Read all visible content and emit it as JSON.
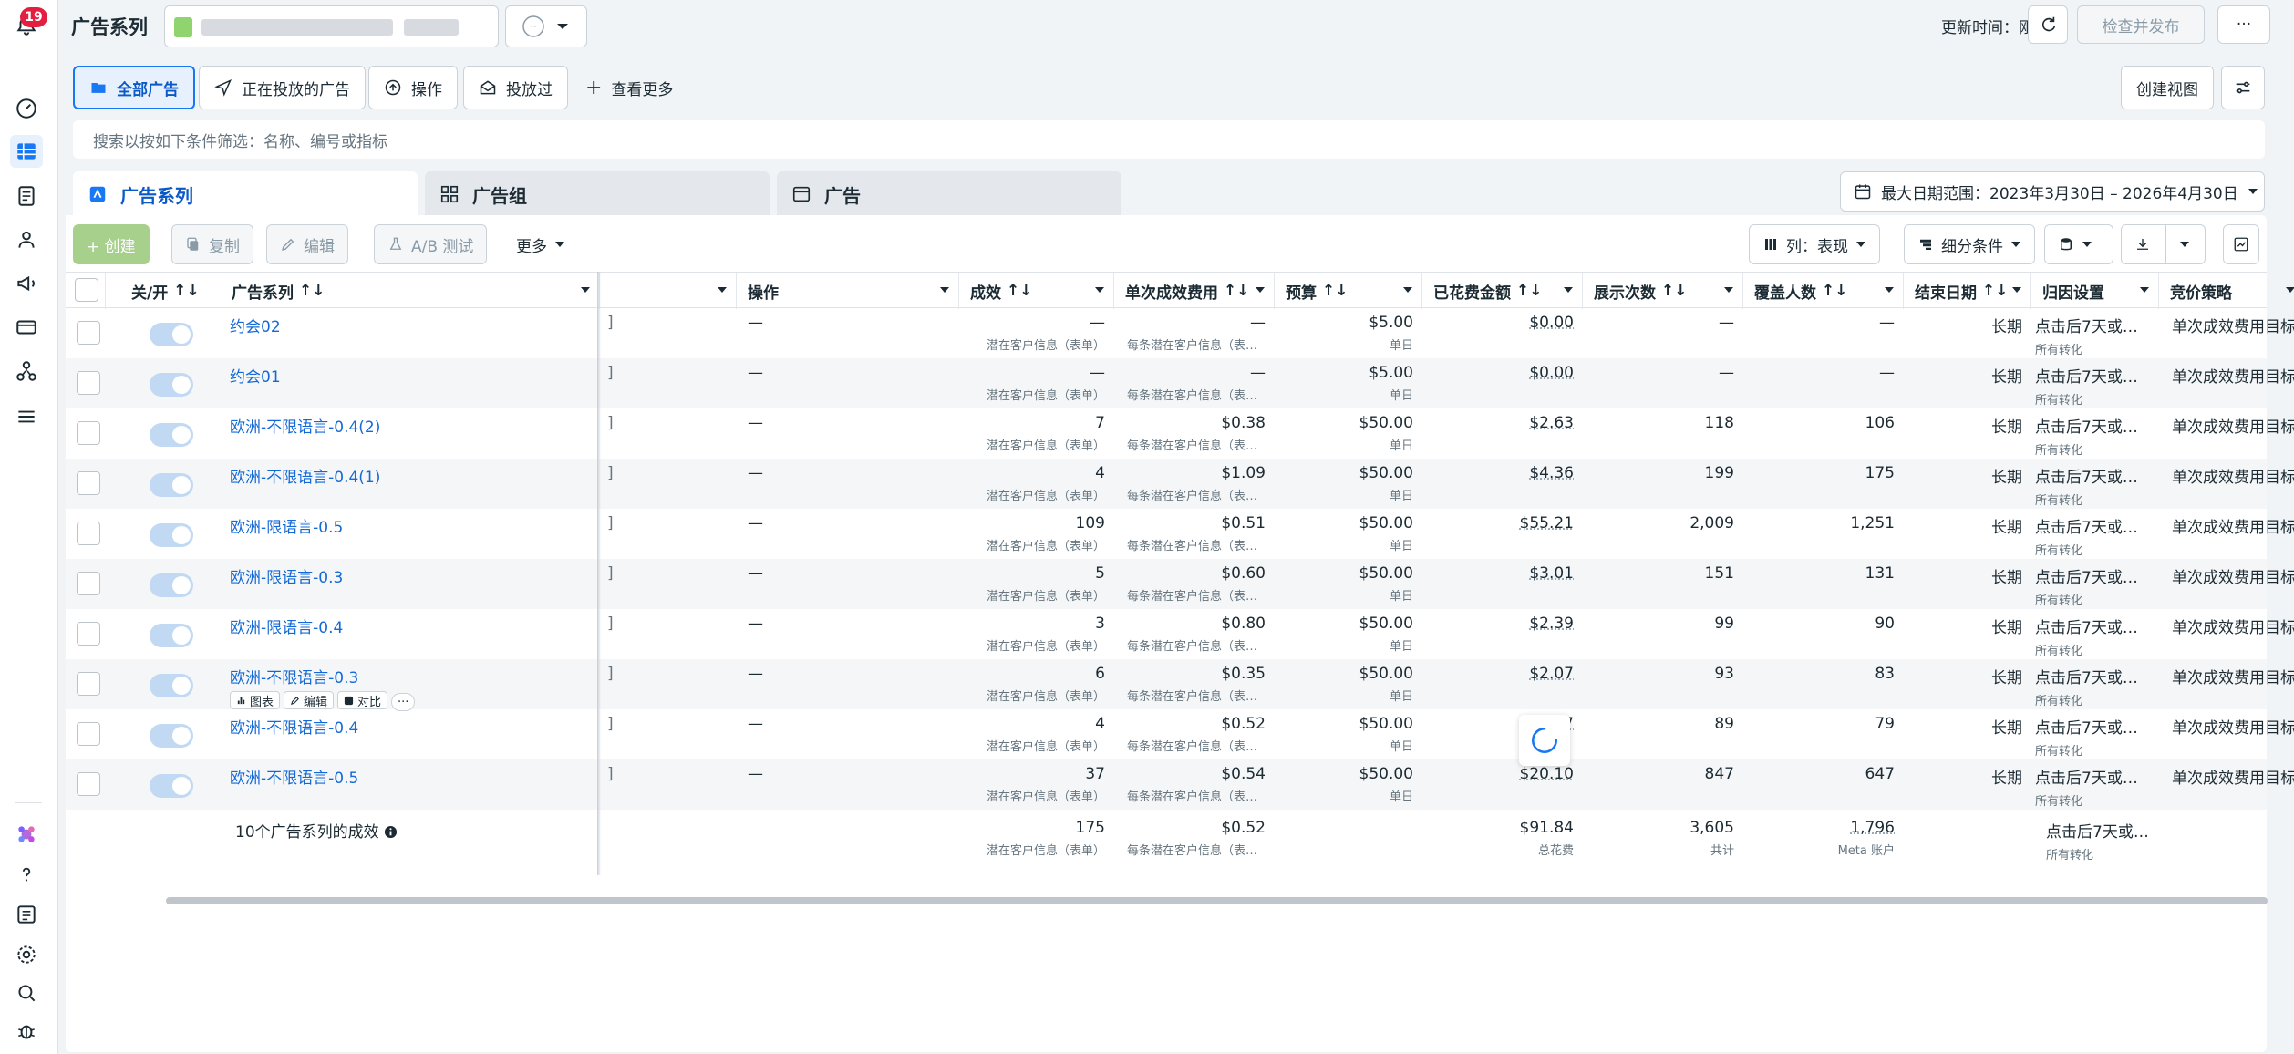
{
  "header": {
    "title": "广告系列",
    "notification_count": "19",
    "updated_time": "更新时间：刚刚",
    "review_publish": "检查并发布",
    "more": "···"
  },
  "quick_filters": [
    {
      "label": "全部广告"
    },
    {
      "label": "正在投放的广告"
    },
    {
      "label": "操作"
    },
    {
      "label": "投放过"
    },
    {
      "label": "查看更多"
    }
  ],
  "create_view": "创建视图",
  "search": {
    "placeholder": "搜索以按如下条件筛选：名称、编号或指标"
  },
  "level_tabs": [
    {
      "label": "广告系列"
    },
    {
      "label": "广告组"
    },
    {
      "label": "广告"
    }
  ],
  "date_range": "最大日期范围：2023年3月30日 – 2026年4月30日",
  "toolbar": {
    "create": "+ 创建",
    "duplicate": "复制",
    "edit": "编辑",
    "ab_test": "A/B 测试",
    "more": "更多",
    "columns": "列：表现",
    "breakdown": "细分条件"
  },
  "columns": {
    "on_off": "关/开",
    "campaign": "广告系列",
    "actions": "操作",
    "results": "成效",
    "cost_per_result": "单次成效费用",
    "budget": "预算",
    "amount_spent": "已花费金额",
    "impressions": "展示次数",
    "reach": "覆盖人数",
    "end_date": "结束日期",
    "attribution": "归因设置",
    "bid_strategy": "竞价策略"
  },
  "rows": [
    {
      "name": "约会02",
      "action": "—",
      "results": "—",
      "results_sub": "潜在客户信息（表单）",
      "cpr": "—",
      "cpr_sub": "每条潜在客户信息（表…",
      "budget": "$5.00",
      "budget_sub": "单日",
      "spent": "$0.00",
      "impressions": "—",
      "reach": "—",
      "end": "长期",
      "attr": "点击后7天或…",
      "attr_sub": "所有转化",
      "bid": "单次成效费用目标"
    },
    {
      "name": "约会01",
      "action": "—",
      "results": "—",
      "results_sub": "潜在客户信息（表单）",
      "cpr": "—",
      "cpr_sub": "每条潜在客户信息（表…",
      "budget": "$5.00",
      "budget_sub": "单日",
      "spent": "$0.00",
      "impressions": "—",
      "reach": "—",
      "end": "长期",
      "attr": "点击后7天或…",
      "attr_sub": "所有转化",
      "bid": "单次成效费用目标"
    },
    {
      "name": "欧洲-不限语言-0.4(2)",
      "action": "—",
      "results": "7",
      "results_sub": "潜在客户信息（表单）",
      "cpr": "$0.38",
      "cpr_sub": "每条潜在客户信息（表…",
      "budget": "$50.00",
      "budget_sub": "单日",
      "spent": "$2.63",
      "impressions": "118",
      "reach": "106",
      "end": "长期",
      "attr": "点击后7天或…",
      "attr_sub": "所有转化",
      "bid": "单次成效费用目标"
    },
    {
      "name": "欧洲-不限语言-0.4(1)",
      "action": "—",
      "results": "4",
      "results_sub": "潜在客户信息（表单）",
      "cpr": "$1.09",
      "cpr_sub": "每条潜在客户信息（表…",
      "budget": "$50.00",
      "budget_sub": "单日",
      "spent": "$4.36",
      "impressions": "199",
      "reach": "175",
      "end": "长期",
      "attr": "点击后7天或…",
      "attr_sub": "所有转化",
      "bid": "单次成效费用目标"
    },
    {
      "name": "欧洲-限语言-0.5",
      "action": "—",
      "results": "109",
      "results_sub": "潜在客户信息（表单）",
      "cpr": "$0.51",
      "cpr_sub": "每条潜在客户信息（表…",
      "budget": "$50.00",
      "budget_sub": "单日",
      "spent": "$55.21",
      "impressions": "2,009",
      "reach": "1,251",
      "end": "长期",
      "attr": "点击后7天或…",
      "attr_sub": "所有转化",
      "bid": "单次成效费用目标"
    },
    {
      "name": "欧洲-限语言-0.3",
      "action": "—",
      "results": "5",
      "results_sub": "潜在客户信息（表单）",
      "cpr": "$0.60",
      "cpr_sub": "每条潜在客户信息（表…",
      "budget": "$50.00",
      "budget_sub": "单日",
      "spent": "$3.01",
      "impressions": "151",
      "reach": "131",
      "end": "长期",
      "attr": "点击后7天或…",
      "attr_sub": "所有转化",
      "bid": "单次成效费用目标"
    },
    {
      "name": "欧洲-限语言-0.4",
      "action": "—",
      "results": "3",
      "results_sub": "潜在客户信息（表单）",
      "cpr": "$0.80",
      "cpr_sub": "每条潜在客户信息（表…",
      "budget": "$50.00",
      "budget_sub": "单日",
      "spent": "$2.39",
      "impressions": "99",
      "reach": "90",
      "end": "长期",
      "attr": "点击后7天或…",
      "attr_sub": "所有转化",
      "bid": "单次成效费用目标"
    },
    {
      "name": "欧洲-不限语言-0.3",
      "action": "—",
      "results": "6",
      "results_sub": "潜在客户信息（表单）",
      "cpr": "$0.35",
      "cpr_sub": "每条潜在客户信息（表…",
      "budget": "$50.00",
      "budget_sub": "单日",
      "spent": "$2.07",
      "impressions": "93",
      "reach": "83",
      "end": "长期",
      "attr": "点击后7天或…",
      "attr_sub": "所有转化",
      "bid": "单次成效费用目标"
    },
    {
      "name": "欧洲-不限语言-0.4",
      "action": "—",
      "results": "4",
      "results_sub": "潜在客户信息（表单）",
      "cpr": "$0.52",
      "cpr_sub": "每条潜在客户信息（表…",
      "budget": "$50.00",
      "budget_sub": "单日",
      "spent": "$2.07",
      "impressions": "89",
      "reach": "79",
      "end": "长期",
      "attr": "点击后7天或…",
      "attr_sub": "所有转化",
      "bid": "单次成效费用目标"
    },
    {
      "name": "欧洲-不限语言-0.5",
      "action": "—",
      "results": "37",
      "results_sub": "潜在客户信息（表单）",
      "cpr": "$0.54",
      "cpr_sub": "每条潜在客户信息（表…",
      "budget": "$50.00",
      "budget_sub": "单日",
      "spent": "$20.10",
      "impressions": "847",
      "reach": "647",
      "end": "长期",
      "attr": "点击后7天或…",
      "attr_sub": "所有转化",
      "bid": "单次成效费用目标"
    }
  ],
  "hover_actions": {
    "chart": "图表",
    "edit": "编辑",
    "compare": "对比",
    "more": "···"
  },
  "summary": {
    "label": "10个广告系列的成效",
    "results": "175",
    "results_sub": "潜在客户信息（表单）",
    "cpr": "$0.52",
    "cpr_sub": "每条潜在客户信息（表…",
    "spent": "$91.84",
    "spent_sub": "总花费",
    "impressions": "3,605",
    "impressions_sub": "共计",
    "reach": "1,796",
    "reach_sub": "Meta 账户",
    "attr": "点击后7天或…",
    "attr_sub": "所有转化"
  },
  "colors": {
    "accent": "#1877f2",
    "link": "#1469d6",
    "badge": "#e41e3f"
  }
}
